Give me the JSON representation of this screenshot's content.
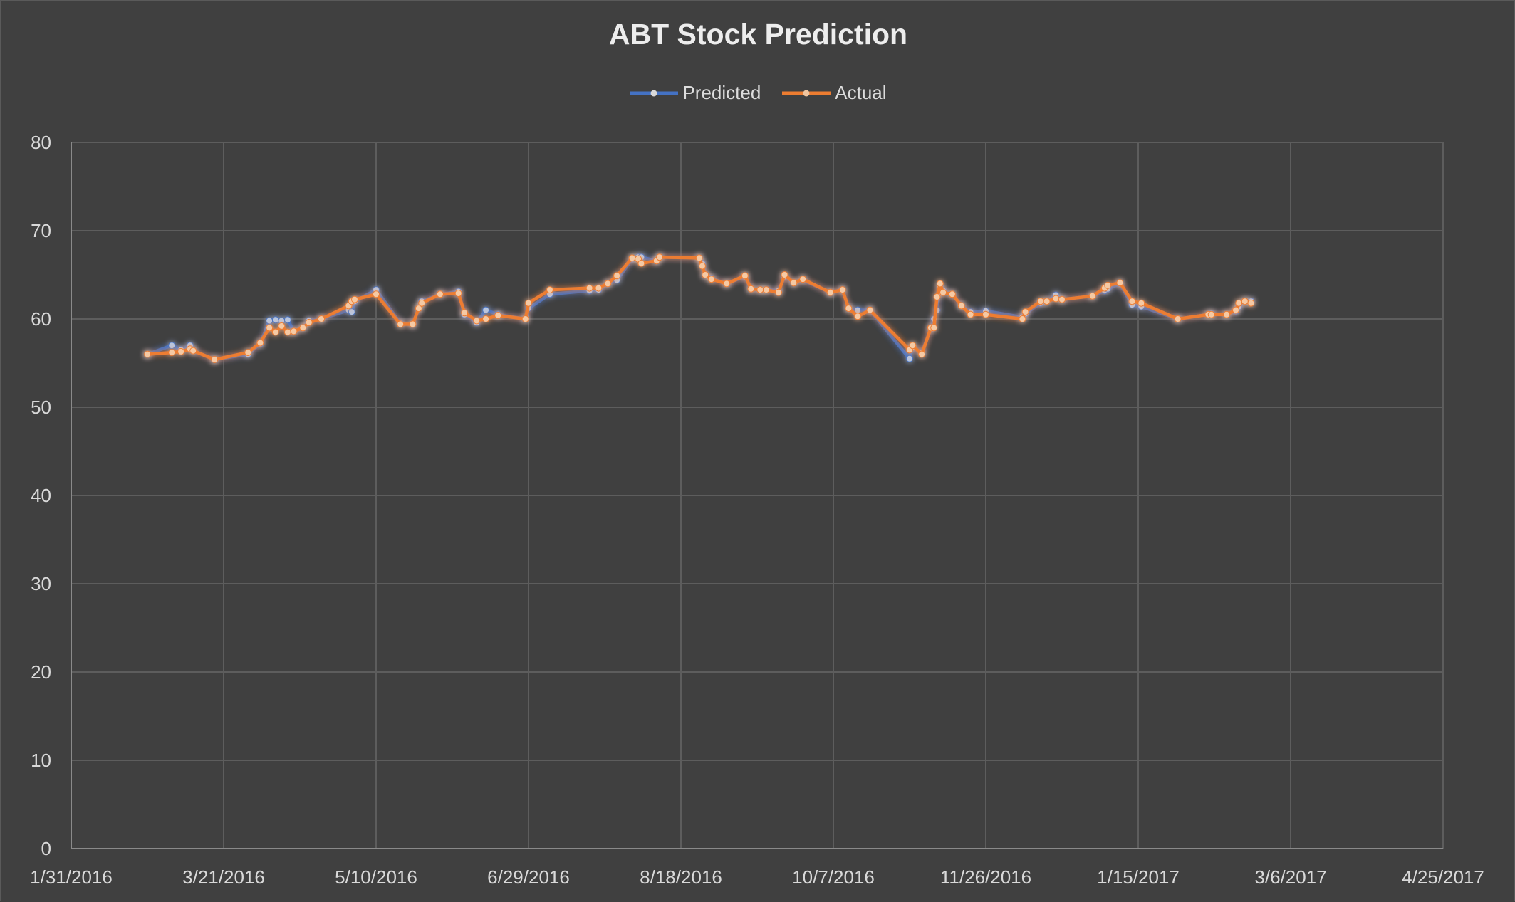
{
  "chart_data": {
    "type": "line",
    "title": "ABT Stock Prediction",
    "xlabel": "",
    "ylabel": "",
    "ylim": [
      0,
      80
    ],
    "yticks": [
      0,
      10,
      20,
      30,
      40,
      50,
      60,
      70,
      80
    ],
    "xlim": [
      "2016-01-31",
      "2017-04-25"
    ],
    "xtick_labels": [
      "1/31/2016",
      "3/21/2016",
      "5/10/2016",
      "6/29/2016",
      "8/18/2016",
      "10/7/2016",
      "11/26/2016",
      "1/15/2017",
      "3/6/2017",
      "4/25/2017"
    ],
    "grid": true,
    "legend_position": "top",
    "colors": {
      "Predicted": "#4472c4",
      "Actual": "#ed7d31"
    },
    "series": [
      {
        "name": "Predicted",
        "points": [
          [
            "2016-02-25",
            56.0
          ],
          [
            "2016-03-04",
            57.0
          ],
          [
            "2016-03-07",
            56.5
          ],
          [
            "2016-03-10",
            57.0
          ],
          [
            "2016-03-11",
            56.4
          ],
          [
            "2016-03-18",
            55.4
          ],
          [
            "2016-03-29",
            56.0
          ],
          [
            "2016-04-02",
            57.2
          ],
          [
            "2016-04-05",
            59.8
          ],
          [
            "2016-04-07",
            59.9
          ],
          [
            "2016-04-09",
            59.8
          ],
          [
            "2016-04-11",
            59.9
          ],
          [
            "2016-04-13",
            58.6
          ],
          [
            "2016-04-16",
            59.0
          ],
          [
            "2016-04-18",
            59.8
          ],
          [
            "2016-04-22",
            60.0
          ],
          [
            "2016-05-01",
            61.0
          ],
          [
            "2016-05-02",
            60.8
          ],
          [
            "2016-05-03",
            62.0
          ],
          [
            "2016-05-10",
            63.3
          ],
          [
            "2016-05-18",
            59.5
          ],
          [
            "2016-05-22",
            59.4
          ],
          [
            "2016-05-24",
            61.2
          ],
          [
            "2016-05-25",
            62.0
          ],
          [
            "2016-05-31",
            62.8
          ],
          [
            "2016-06-06",
            63.1
          ],
          [
            "2016-06-08",
            60.5
          ],
          [
            "2016-06-12",
            59.6
          ],
          [
            "2016-06-15",
            61.0
          ],
          [
            "2016-06-19",
            60.5
          ],
          [
            "2016-06-28",
            60.0
          ],
          [
            "2016-06-29",
            61.2
          ],
          [
            "2016-07-06",
            62.8
          ],
          [
            "2016-07-19",
            63.2
          ],
          [
            "2016-07-22",
            63.3
          ],
          [
            "2016-07-25",
            64.0
          ],
          [
            "2016-07-28",
            64.4
          ],
          [
            "2016-08-02",
            66.8
          ],
          [
            "2016-08-04",
            67.0
          ],
          [
            "2016-08-05",
            67.0
          ],
          [
            "2016-08-10",
            66.6
          ],
          [
            "2016-08-11",
            67.0
          ],
          [
            "2016-08-24",
            66.9
          ],
          [
            "2016-08-25",
            66.3
          ],
          [
            "2016-08-26",
            65.0
          ],
          [
            "2016-08-28",
            64.6
          ],
          [
            "2016-09-02",
            64.0
          ],
          [
            "2016-09-08",
            64.8
          ],
          [
            "2016-09-10",
            63.4
          ],
          [
            "2016-09-13",
            63.3
          ],
          [
            "2016-09-15",
            63.3
          ],
          [
            "2016-09-19",
            63.2
          ],
          [
            "2016-09-21",
            64.8
          ],
          [
            "2016-09-24",
            64.1
          ],
          [
            "2016-09-27",
            64.4
          ],
          [
            "2016-10-06",
            63.0
          ],
          [
            "2016-10-10",
            63.3
          ],
          [
            "2016-10-12",
            61.2
          ],
          [
            "2016-10-15",
            61.0
          ],
          [
            "2016-10-19",
            61.0
          ],
          [
            "2016-11-01",
            55.5
          ],
          [
            "2016-11-02",
            56.8
          ],
          [
            "2016-11-05",
            56.2
          ],
          [
            "2016-11-08",
            58.9
          ],
          [
            "2016-11-09",
            60.0
          ],
          [
            "2016-11-10",
            61.0
          ],
          [
            "2016-11-11",
            63.6
          ],
          [
            "2016-11-12",
            63.2
          ],
          [
            "2016-11-15",
            62.8
          ],
          [
            "2016-11-18",
            61.5
          ],
          [
            "2016-11-21",
            60.8
          ],
          [
            "2016-11-26",
            60.9
          ],
          [
            "2016-12-08",
            60.2
          ],
          [
            "2016-12-09",
            60.6
          ],
          [
            "2016-12-14",
            61.8
          ],
          [
            "2016-12-16",
            62.0
          ],
          [
            "2016-12-19",
            62.7
          ],
          [
            "2016-12-21",
            62.2
          ],
          [
            "2016-12-31",
            62.6
          ],
          [
            "2017-01-04",
            63.2
          ],
          [
            "2017-01-05",
            63.4
          ],
          [
            "2017-01-09",
            64.0
          ],
          [
            "2017-01-13",
            61.6
          ],
          [
            "2017-01-16",
            61.4
          ],
          [
            "2017-01-28",
            60.0
          ],
          [
            "2017-02-07",
            60.5
          ],
          [
            "2017-02-08",
            60.6
          ],
          [
            "2017-02-13",
            60.5
          ],
          [
            "2017-02-16",
            60.9
          ],
          [
            "2017-02-17",
            61.4
          ],
          [
            "2017-02-19",
            62.0
          ],
          [
            "2017-02-21",
            62.0
          ]
        ]
      },
      {
        "name": "Actual",
        "points": [
          [
            "2016-02-25",
            56.0
          ],
          [
            "2016-03-04",
            56.2
          ],
          [
            "2016-03-07",
            56.3
          ],
          [
            "2016-03-10",
            56.6
          ],
          [
            "2016-03-11",
            56.4
          ],
          [
            "2016-03-18",
            55.4
          ],
          [
            "2016-03-29",
            56.2
          ],
          [
            "2016-04-02",
            57.3
          ],
          [
            "2016-04-05",
            59.0
          ],
          [
            "2016-04-07",
            58.5
          ],
          [
            "2016-04-09",
            59.2
          ],
          [
            "2016-04-11",
            58.5
          ],
          [
            "2016-04-13",
            58.6
          ],
          [
            "2016-04-16",
            59.0
          ],
          [
            "2016-04-18",
            59.6
          ],
          [
            "2016-04-22",
            60.0
          ],
          [
            "2016-05-01",
            61.5
          ],
          [
            "2016-05-02",
            62.0
          ],
          [
            "2016-05-03",
            62.2
          ],
          [
            "2016-05-10",
            62.8
          ],
          [
            "2016-05-18",
            59.4
          ],
          [
            "2016-05-22",
            59.4
          ],
          [
            "2016-05-24",
            61.2
          ],
          [
            "2016-05-25",
            61.8
          ],
          [
            "2016-05-31",
            62.8
          ],
          [
            "2016-06-06",
            62.9
          ],
          [
            "2016-06-08",
            60.7
          ],
          [
            "2016-06-12",
            59.8
          ],
          [
            "2016-06-15",
            60.0
          ],
          [
            "2016-06-19",
            60.4
          ],
          [
            "2016-06-28",
            60.0
          ],
          [
            "2016-06-29",
            61.8
          ],
          [
            "2016-07-06",
            63.3
          ],
          [
            "2016-07-19",
            63.5
          ],
          [
            "2016-07-22",
            63.5
          ],
          [
            "2016-07-25",
            64.0
          ],
          [
            "2016-07-28",
            64.9
          ],
          [
            "2016-08-02",
            66.9
          ],
          [
            "2016-08-04",
            66.8
          ],
          [
            "2016-08-05",
            66.3
          ],
          [
            "2016-08-10",
            66.6
          ],
          [
            "2016-08-11",
            67.0
          ],
          [
            "2016-08-24",
            66.9
          ],
          [
            "2016-08-25",
            66.0
          ],
          [
            "2016-08-26",
            65.0
          ],
          [
            "2016-08-28",
            64.5
          ],
          [
            "2016-09-02",
            64.0
          ],
          [
            "2016-09-08",
            64.9
          ],
          [
            "2016-09-10",
            63.4
          ],
          [
            "2016-09-13",
            63.3
          ],
          [
            "2016-09-15",
            63.3
          ],
          [
            "2016-09-19",
            63.0
          ],
          [
            "2016-09-21",
            65.0
          ],
          [
            "2016-09-24",
            64.1
          ],
          [
            "2016-09-27",
            64.5
          ],
          [
            "2016-10-06",
            63.0
          ],
          [
            "2016-10-10",
            63.3
          ],
          [
            "2016-10-12",
            61.2
          ],
          [
            "2016-10-15",
            60.3
          ],
          [
            "2016-10-19",
            61.0
          ],
          [
            "2016-11-01",
            56.5
          ],
          [
            "2016-11-02",
            57.0
          ],
          [
            "2016-11-05",
            56.0
          ],
          [
            "2016-11-08",
            59.0
          ],
          [
            "2016-11-09",
            59.0
          ],
          [
            "2016-11-10",
            62.5
          ],
          [
            "2016-11-11",
            64.0
          ],
          [
            "2016-11-12",
            63.0
          ],
          [
            "2016-11-15",
            62.8
          ],
          [
            "2016-11-18",
            61.5
          ],
          [
            "2016-11-21",
            60.5
          ],
          [
            "2016-11-26",
            60.5
          ],
          [
            "2016-12-08",
            60.0
          ],
          [
            "2016-12-09",
            60.8
          ],
          [
            "2016-12-14",
            62.0
          ],
          [
            "2016-12-16",
            62.0
          ],
          [
            "2016-12-19",
            62.3
          ],
          [
            "2016-12-21",
            62.2
          ],
          [
            "2016-12-31",
            62.6
          ],
          [
            "2017-01-04",
            63.5
          ],
          [
            "2017-01-05",
            63.8
          ],
          [
            "2017-01-09",
            64.1
          ],
          [
            "2017-01-13",
            62.0
          ],
          [
            "2017-01-16",
            61.8
          ],
          [
            "2017-01-28",
            60.0
          ],
          [
            "2017-02-07",
            60.5
          ],
          [
            "2017-02-08",
            60.5
          ],
          [
            "2017-02-13",
            60.5
          ],
          [
            "2017-02-16",
            61.0
          ],
          [
            "2017-02-17",
            61.8
          ],
          [
            "2017-02-19",
            62.0
          ],
          [
            "2017-02-21",
            61.8
          ]
        ]
      }
    ]
  }
}
